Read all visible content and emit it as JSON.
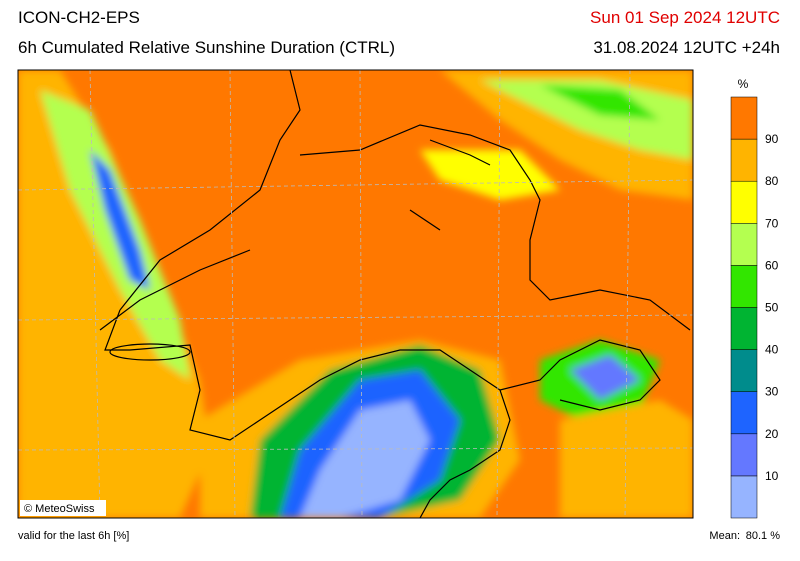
{
  "header": {
    "model": "ICON-CH2-EPS",
    "product": "6h Cumulated Relative Sunshine Duration (CTRL)",
    "valid_time": "Sun 01 Sep 2024 12UTC",
    "run": "31.08.2024 12UTC +24h"
  },
  "colorbar": {
    "unit": "%",
    "ticks": [
      "10",
      "20",
      "30",
      "40",
      "50",
      "60",
      "70",
      "80",
      "90"
    ],
    "colors": [
      "#96b4ff",
      "#6478ff",
      "#1e64ff",
      "#008c8c",
      "#00b432",
      "#32e600",
      "#b4ff50",
      "#ffff00",
      "#ffb400",
      "#ff7800"
    ]
  },
  "map": {
    "copyright": "© MeteoSwiss"
  },
  "footer": {
    "note": "valid for the last 6h [%]",
    "mean_label": "Mean:",
    "mean_value": "80.1 %"
  }
}
